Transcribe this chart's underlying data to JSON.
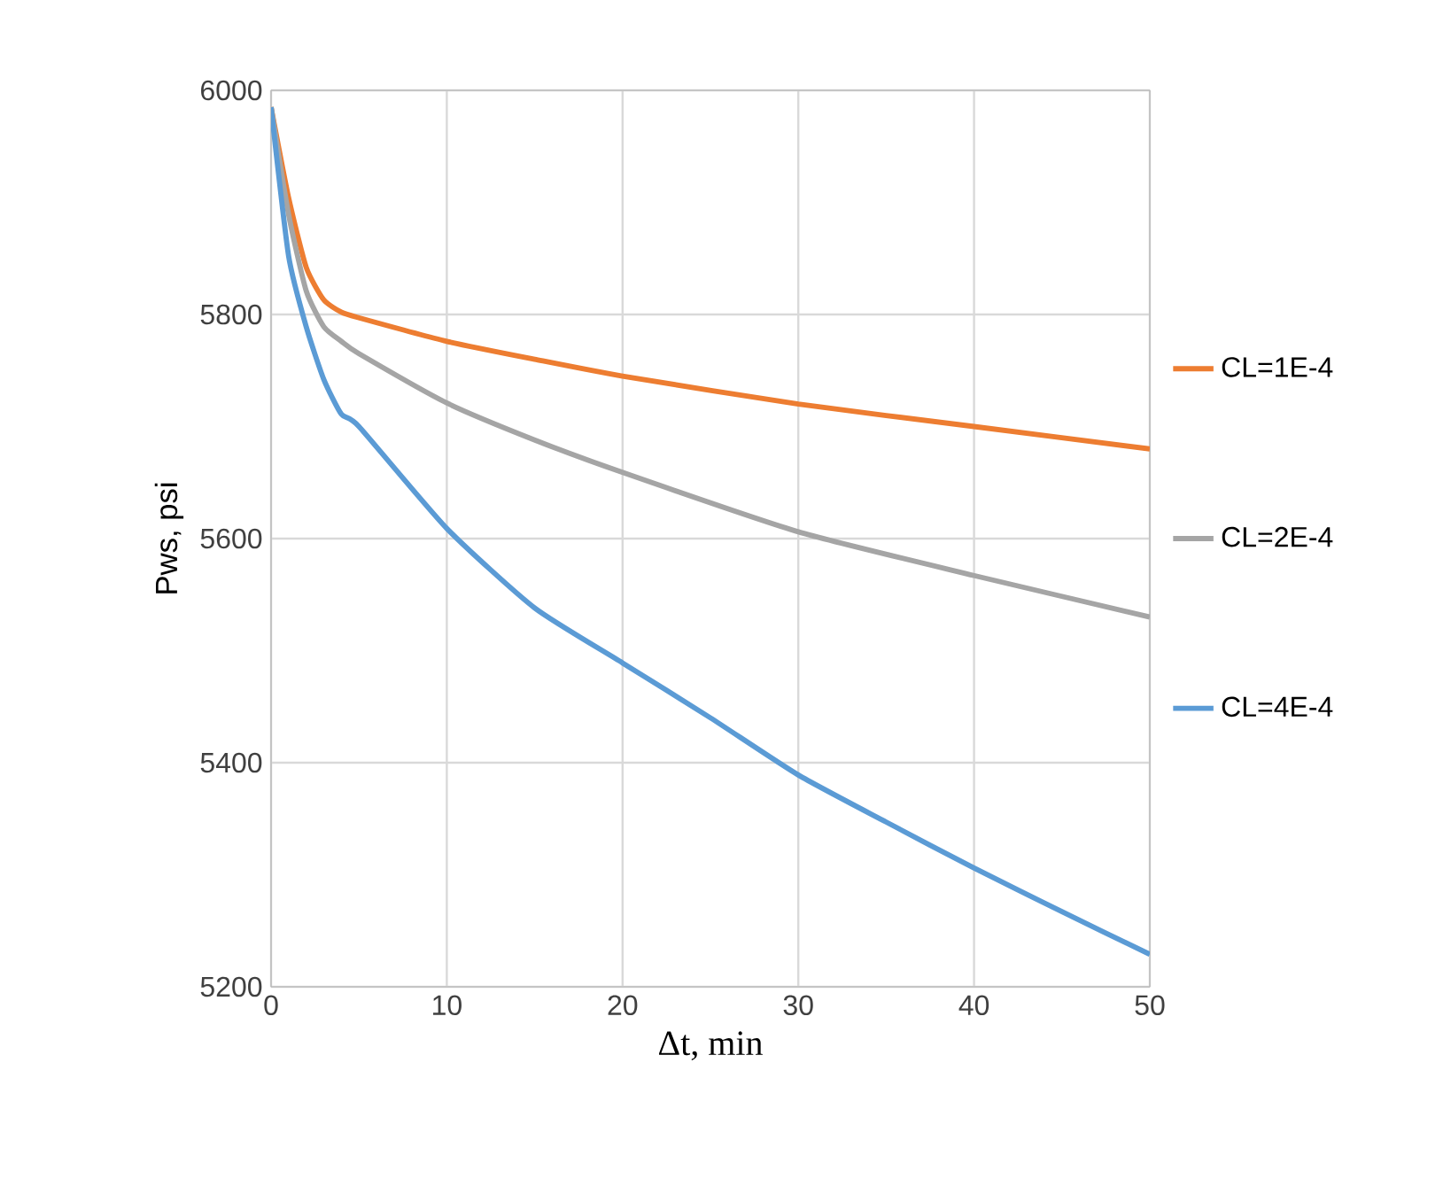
{
  "chart_data": {
    "type": "line",
    "xlabel": "Δt, min",
    "ylabel": "Pws, psi",
    "xlim": [
      0,
      50
    ],
    "xticks": [
      0,
      10,
      20,
      30,
      40,
      50
    ],
    "ylim": [
      5200,
      6000
    ],
    "yticks": [
      5200,
      5400,
      5600,
      5800,
      6000
    ],
    "grid": true,
    "legend": "right",
    "series": [
      {
        "name": "CL=1E-4",
        "color": "#ed7d31",
        "x": [
          0,
          1,
          2,
          3,
          4,
          5,
          10,
          15,
          20,
          30,
          40,
          50
        ],
        "values": [
          5985,
          5904,
          5842,
          5813,
          5802,
          5797,
          5776,
          5760,
          5745,
          5720,
          5700,
          5680
        ]
      },
      {
        "name": "CL=2E-4",
        "color": "#a5a5a5",
        "x": [
          0,
          1,
          2,
          3,
          4,
          5,
          10,
          15,
          20,
          30,
          40,
          50
        ],
        "values": [
          5985,
          5889,
          5821,
          5789,
          5776,
          5765,
          5721,
          5688,
          5659,
          5606,
          5567,
          5530
        ]
      },
      {
        "name": "CL=4E-4",
        "color": "#5b9bd5",
        "x": [
          0,
          1,
          2,
          3,
          4,
          5,
          10,
          15,
          20,
          25,
          30,
          35,
          40,
          45,
          50
        ],
        "values": [
          5985,
          5852,
          5789,
          5742,
          5711,
          5700,
          5609,
          5538,
          5489,
          5440,
          5389,
          5347,
          5306,
          5267,
          5229
        ]
      }
    ]
  }
}
